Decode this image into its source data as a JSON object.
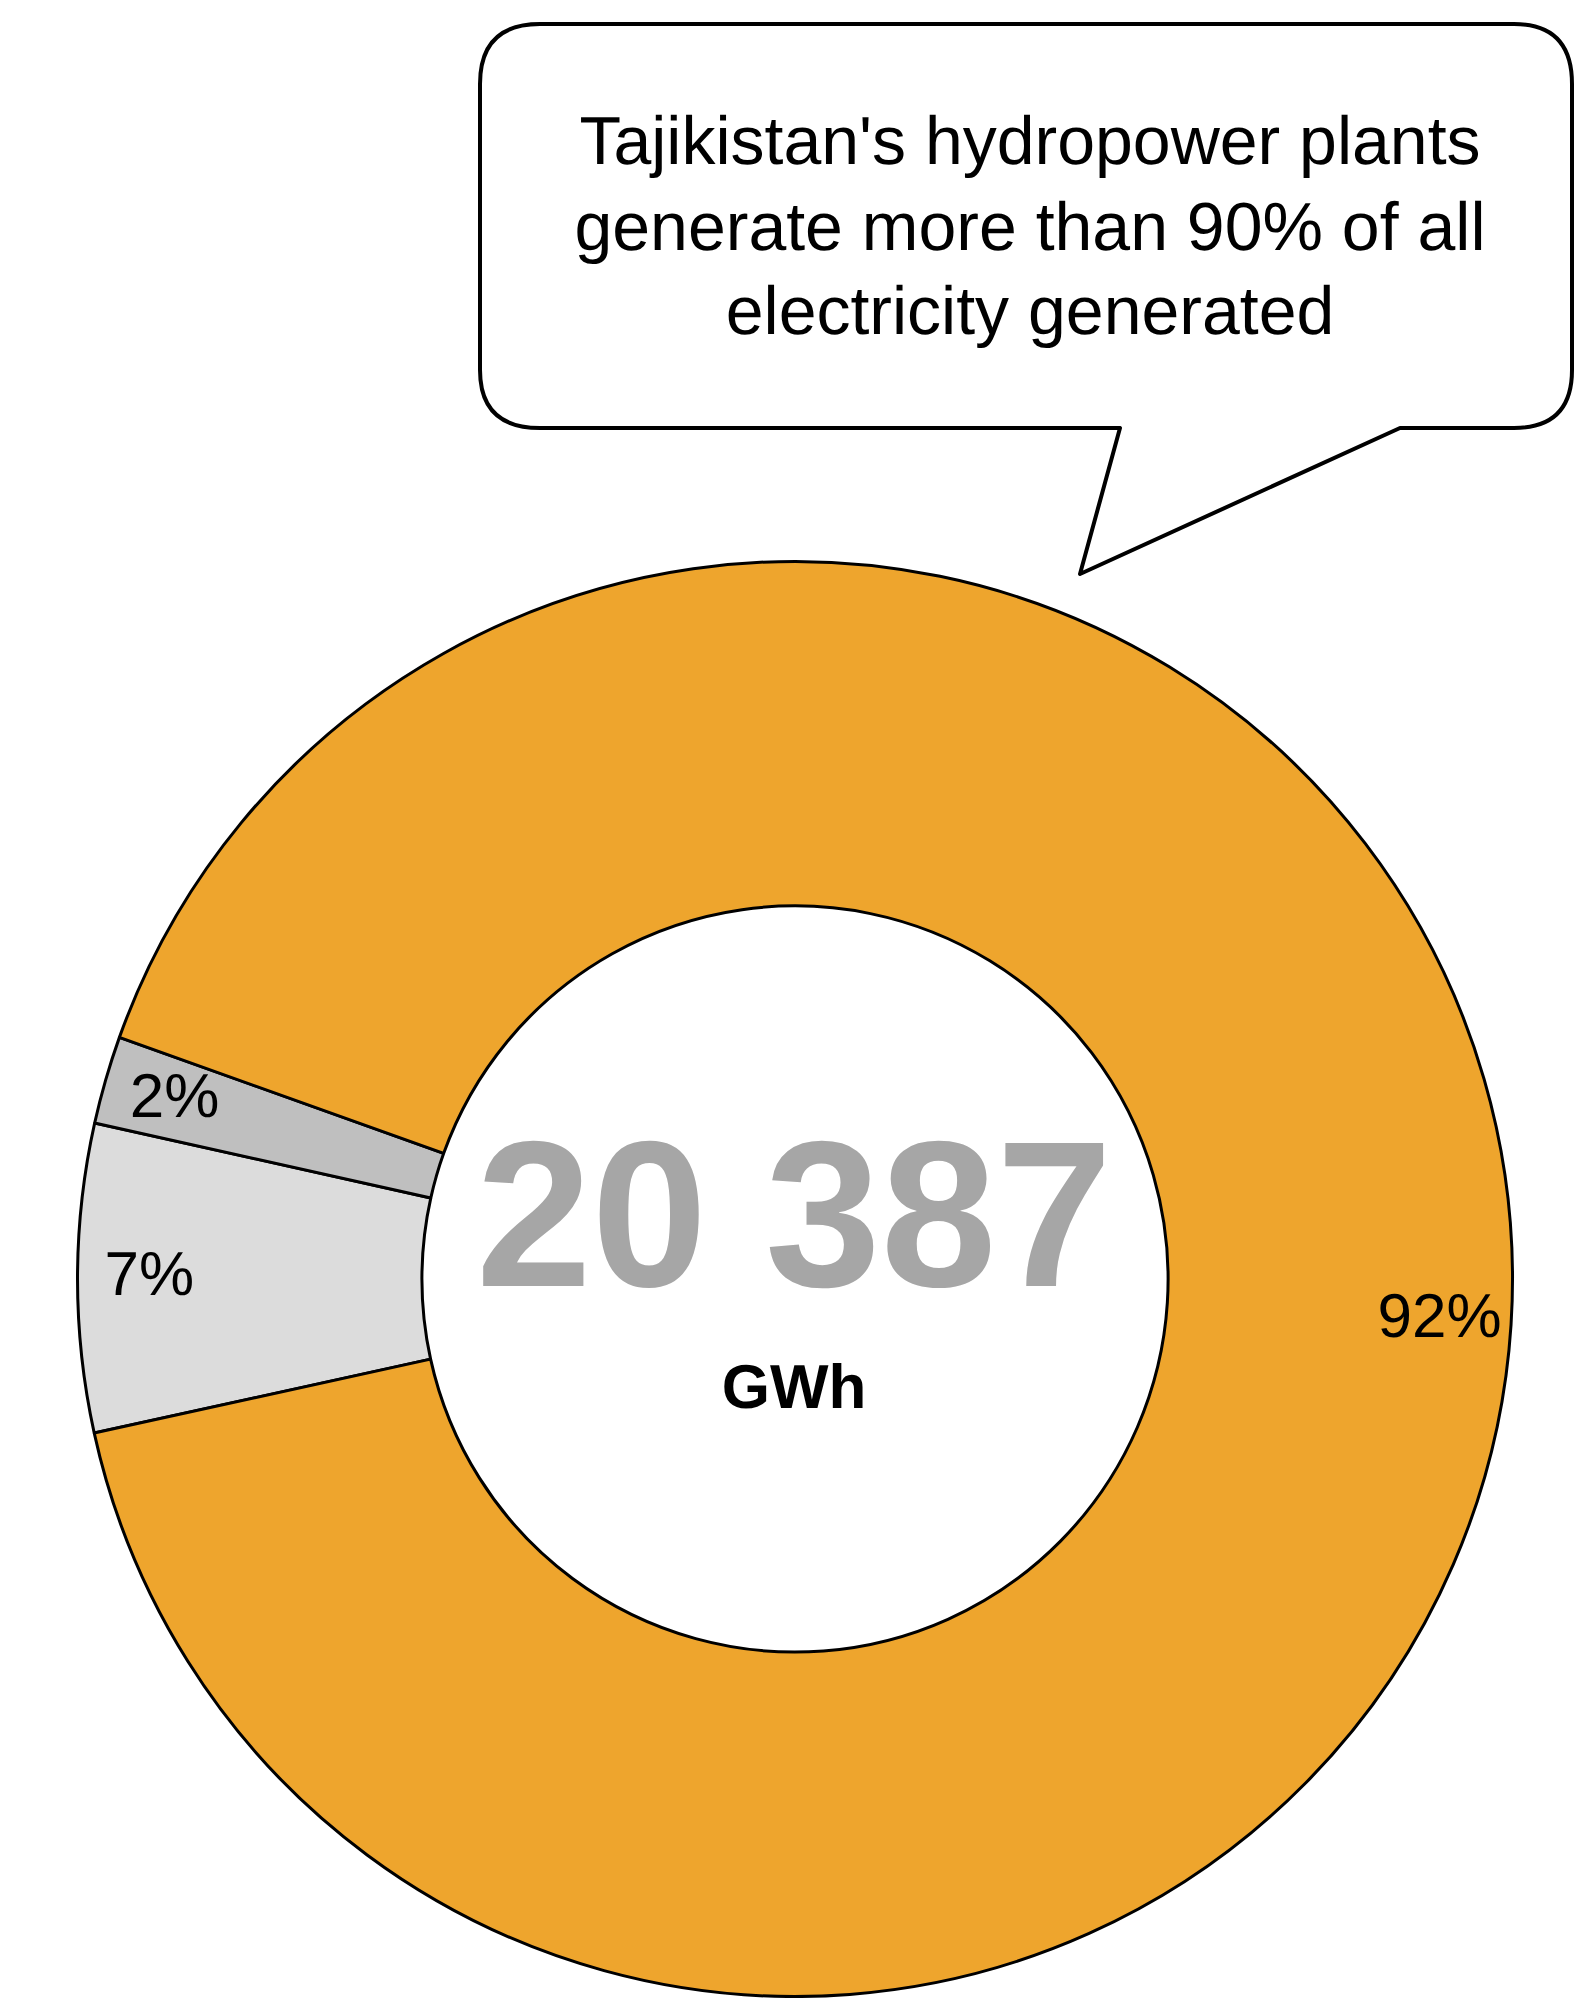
{
  "chart_data": {
    "type": "donut",
    "categories": [
      null,
      null,
      null
    ],
    "values": [
      7,
      2,
      92
    ],
    "colors": [
      "#dcdcdc",
      "#bfbfbf",
      "#eea52d"
    ],
    "value_labels": [
      "7%",
      "2%",
      "92%"
    ],
    "legend": false,
    "annotations": [
      "Tajikistan's hydropower plants generate more than 90% of all electricity generated",
      "20 387",
      "GWh"
    ]
  }
}
